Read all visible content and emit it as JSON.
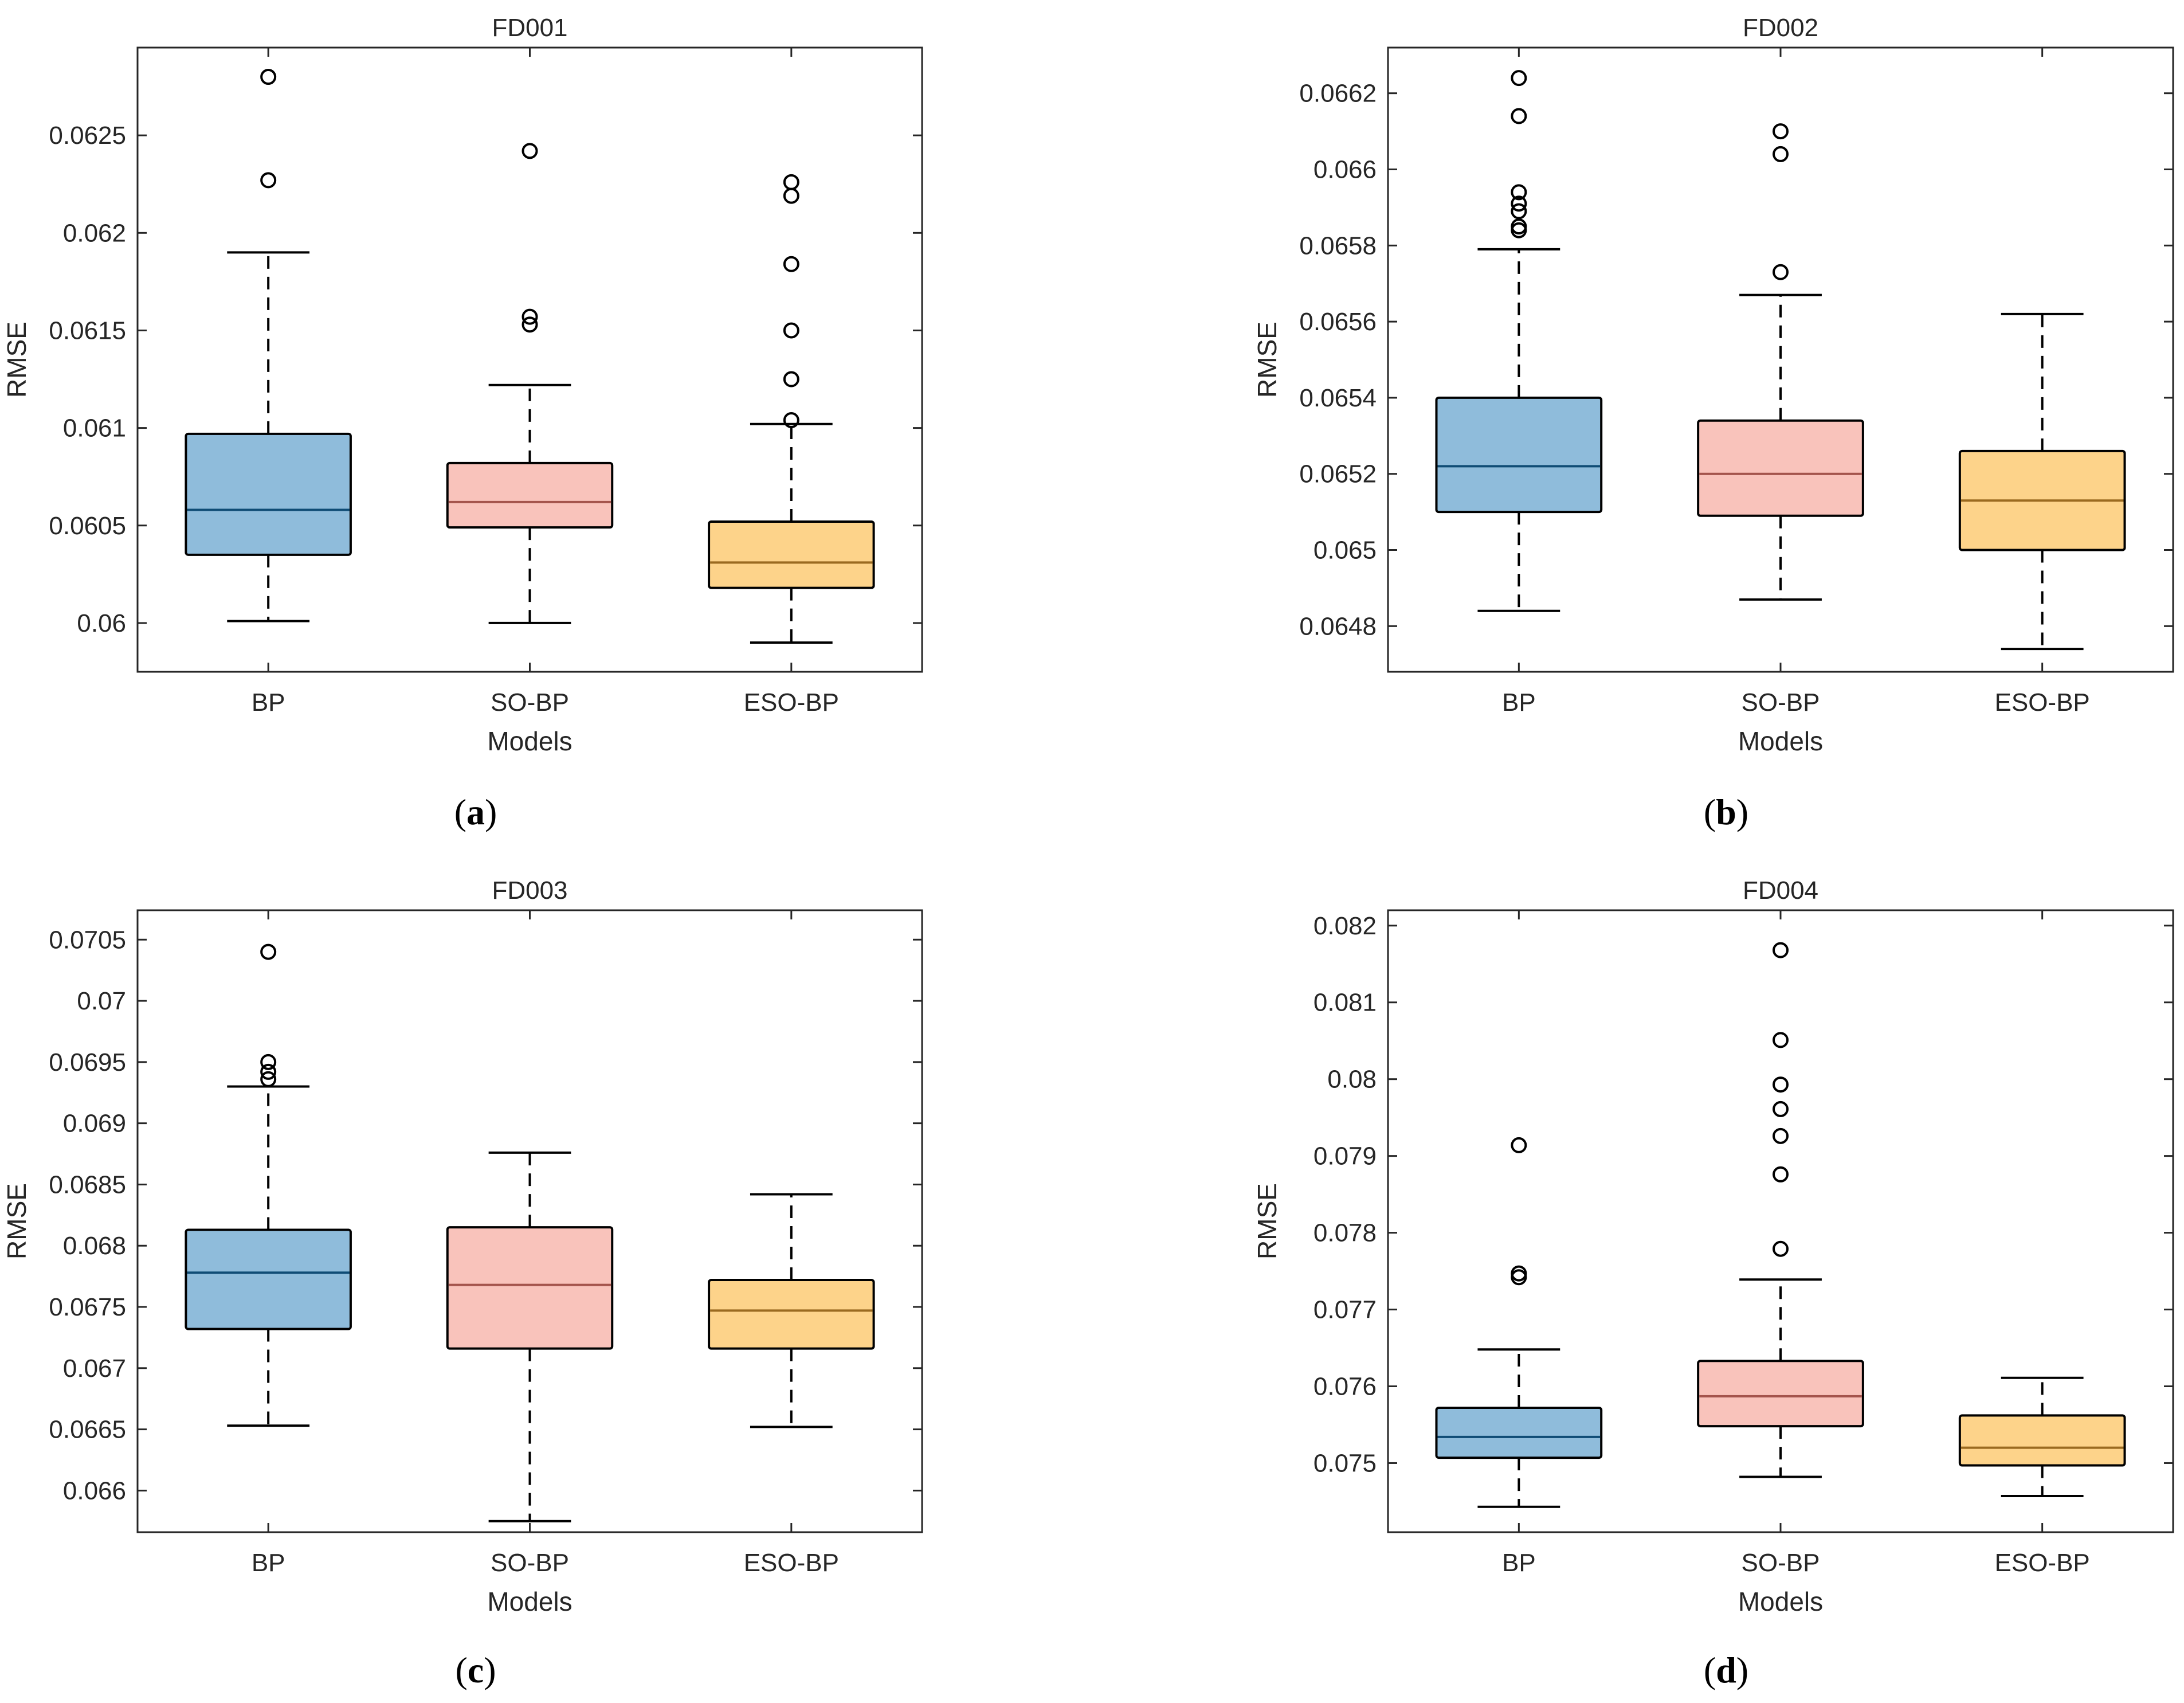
{
  "chart_data": [
    {
      "type": "box",
      "panel": "a",
      "caption": "(a)",
      "caption_letter": "a",
      "title": "FD001",
      "xlabel": "Models",
      "ylabel": "RMSE",
      "ylim": [
        0.05975,
        0.06295
      ],
      "yticks": [
        0.06,
        0.0605,
        0.061,
        0.0615,
        0.062,
        0.0625
      ],
      "ytick_labels": [
        "0.06",
        "0.0605",
        "0.061",
        "0.0615",
        "0.062",
        "0.0625"
      ],
      "categories": [
        "BP",
        "SO-BP",
        "ESO-BP"
      ],
      "colors": [
        "#8fbcdb",
        "#f9c3bb",
        "#fdd38a"
      ],
      "median_colors": [
        "#0f4c75",
        "#a4544c",
        "#9a6a20"
      ],
      "boxes": [
        {
          "min": 0.06001,
          "q1": 0.06035,
          "median": 0.06058,
          "q3": 0.06097,
          "max": 0.0619,
          "outliers": [
            0.0628,
            0.06227
          ]
        },
        {
          "min": 0.06,
          "q1": 0.06049,
          "median": 0.06062,
          "q3": 0.06082,
          "max": 0.06122,
          "outliers": [
            0.06242,
            0.06157,
            0.06153
          ]
        },
        {
          "min": 0.0599,
          "q1": 0.06018,
          "median": 0.06031,
          "q3": 0.06052,
          "max": 0.06102,
          "outliers": [
            0.06226,
            0.06219,
            0.06184,
            0.0615,
            0.06125,
            0.06104
          ]
        }
      ]
    },
    {
      "type": "box",
      "panel": "b",
      "caption": "(b)",
      "caption_letter": "b",
      "title": "FD002",
      "xlabel": "Models",
      "ylabel": "RMSE",
      "ylim": [
        0.06468,
        0.06632
      ],
      "yticks": [
        0.0648,
        0.065,
        0.0652,
        0.0654,
        0.0656,
        0.0658,
        0.066,
        0.0662
      ],
      "ytick_labels": [
        "0.0648",
        "0.065",
        "0.0652",
        "0.0654",
        "0.0656",
        "0.0658",
        "0.066",
        "0.0662"
      ],
      "categories": [
        "BP",
        "SO-BP",
        "ESO-BP"
      ],
      "colors": [
        "#8fbcdb",
        "#f9c3bb",
        "#fdd38a"
      ],
      "median_colors": [
        "#0f4c75",
        "#a4544c",
        "#9a6a20"
      ],
      "boxes": [
        {
          "min": 0.06484,
          "q1": 0.0651,
          "median": 0.06522,
          "q3": 0.0654,
          "max": 0.06579,
          "outliers": [
            0.06624,
            0.06614,
            0.06594,
            0.06591,
            0.06589,
            0.06585,
            0.06584
          ]
        },
        {
          "min": 0.06487,
          "q1": 0.06509,
          "median": 0.0652,
          "q3": 0.06534,
          "max": 0.06567,
          "outliers": [
            0.0661,
            0.06604,
            0.06573
          ]
        },
        {
          "min": 0.06474,
          "q1": 0.065,
          "median": 0.06513,
          "q3": 0.06526,
          "max": 0.06562,
          "outliers": []
        }
      ]
    },
    {
      "type": "box",
      "panel": "c",
      "caption": "(c)",
      "caption_letter": "c",
      "title": "FD003",
      "xlabel": "Models",
      "ylabel": "RMSE",
      "ylim": [
        0.06566,
        0.07074
      ],
      "yticks": [
        0.066,
        0.0665,
        0.067,
        0.0675,
        0.068,
        0.0685,
        0.069,
        0.0695,
        0.07,
        0.0705
      ],
      "ytick_labels": [
        "0.066",
        "0.0665",
        "0.067",
        "0.0675",
        "0.068",
        "0.0685",
        "0.069",
        "0.0695",
        "0.07",
        "0.0705"
      ],
      "categories": [
        "BP",
        "SO-BP",
        "ESO-BP"
      ],
      "colors": [
        "#8fbcdb",
        "#f9c3bb",
        "#fdd38a"
      ],
      "median_colors": [
        "#0f4c75",
        "#a4544c",
        "#9a6a20"
      ],
      "boxes": [
        {
          "min": 0.06653,
          "q1": 0.06732,
          "median": 0.06778,
          "q3": 0.06813,
          "max": 0.0693,
          "outliers": [
            0.0704,
            0.0695,
            0.06942,
            0.06936
          ]
        },
        {
          "min": 0.06575,
          "q1": 0.06716,
          "median": 0.06768,
          "q3": 0.06815,
          "max": 0.06876,
          "outliers": []
        },
        {
          "min": 0.06652,
          "q1": 0.06716,
          "median": 0.06747,
          "q3": 0.06772,
          "max": 0.06842,
          "outliers": []
        }
      ]
    },
    {
      "type": "box",
      "panel": "d",
      "caption": "(d)",
      "caption_letter": "d",
      "title": "FD004",
      "xlabel": "Models",
      "ylabel": "RMSE",
      "ylim": [
        0.0741,
        0.0822
      ],
      "yticks": [
        0.075,
        0.076,
        0.077,
        0.078,
        0.079,
        0.08,
        0.081,
        0.082
      ],
      "ytick_labels": [
        "0.075",
        "0.076",
        "0.077",
        "0.078",
        "0.079",
        "0.08",
        "0.081",
        "0.082"
      ],
      "categories": [
        "BP",
        "SO-BP",
        "ESO-BP"
      ],
      "colors": [
        "#8fbcdb",
        "#f9c3bb",
        "#fdd38a"
      ],
      "median_colors": [
        "#0f4c75",
        "#a4544c",
        "#9a6a20"
      ],
      "boxes": [
        {
          "min": 0.07443,
          "q1": 0.07507,
          "median": 0.07534,
          "q3": 0.07572,
          "max": 0.07648,
          "outliers": [
            0.07914,
            0.07747,
            0.07742
          ]
        },
        {
          "min": 0.07482,
          "q1": 0.07548,
          "median": 0.07587,
          "q3": 0.07633,
          "max": 0.07739,
          "outliers": [
            0.08168,
            0.08051,
            0.07993,
            0.07961,
            0.07926,
            0.07876,
            0.07779
          ]
        },
        {
          "min": 0.07457,
          "q1": 0.07497,
          "median": 0.0752,
          "q3": 0.07562,
          "max": 0.07611,
          "outliers": []
        }
      ]
    }
  ]
}
